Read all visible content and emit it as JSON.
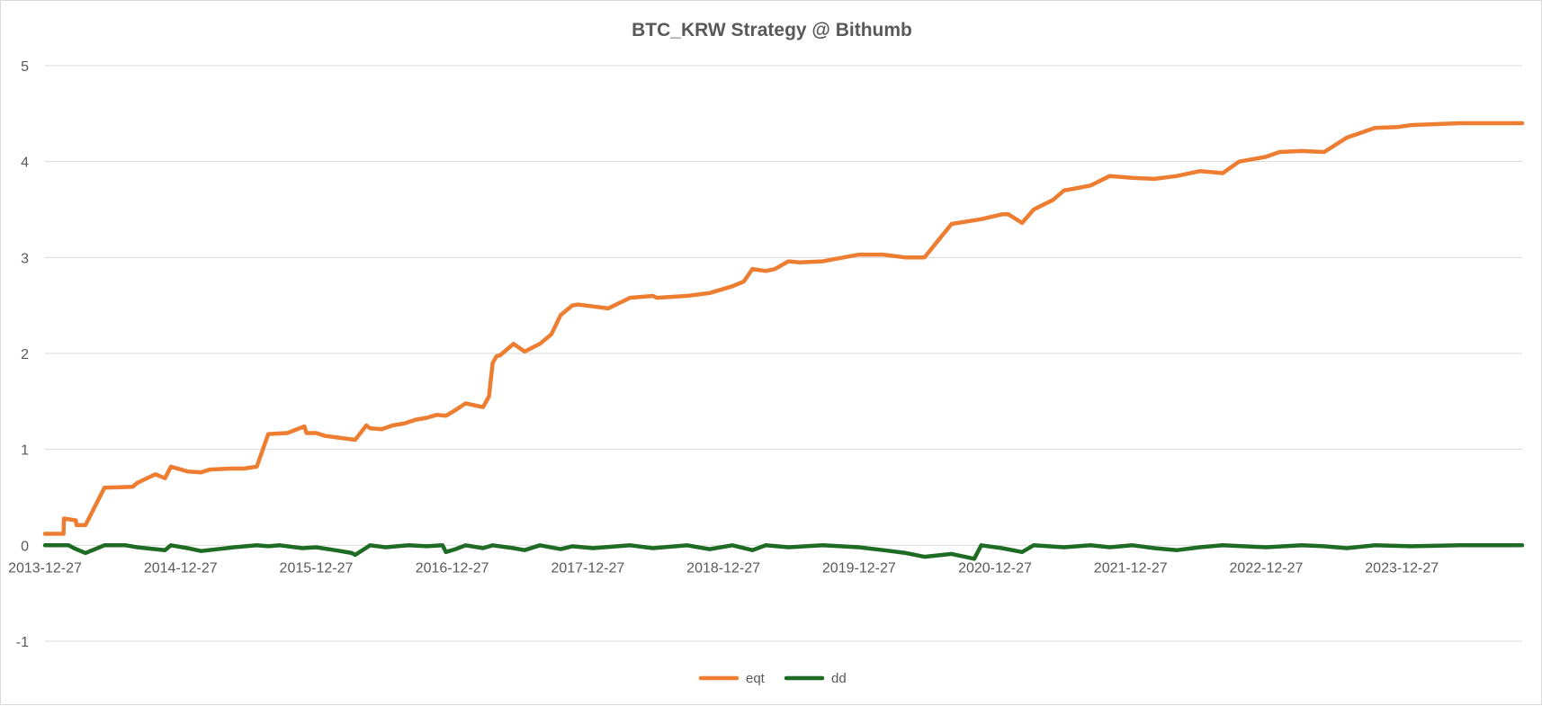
{
  "chart_data": {
    "type": "line",
    "title": "BTC_KRW Strategy @ Bithumb",
    "xlabel": "",
    "ylabel": "",
    "x_tick_labels": [
      "2013-12-27",
      "2014-12-27",
      "2015-12-27",
      "2016-12-27",
      "2017-12-27",
      "2018-12-27",
      "2019-12-27",
      "2020-12-27",
      "2021-12-27",
      "2022-12-27",
      "2023-12-27"
    ],
    "xlim": [
      "2013-12-27",
      "2024-11-15"
    ],
    "ylim": [
      -1,
      5
    ],
    "y_ticks": [
      -1,
      0,
      1,
      2,
      3,
      4,
      5
    ],
    "grid": true,
    "legend_position": "bottom",
    "series": [
      {
        "name": "eqt",
        "color": "#ed7d31",
        "x": [
          "2013-12-27",
          "2014-02-15",
          "2014-02-16",
          "2014-03-20",
          "2014-03-22",
          "2014-04-15",
          "2014-06-05",
          "2014-08-20",
          "2014-09-01",
          "2014-10-20",
          "2014-11-15",
          "2014-12-01",
          "2015-01-15",
          "2015-02-20",
          "2015-03-15",
          "2015-05-10",
          "2015-06-15",
          "2015-07-20",
          "2015-08-20",
          "2015-10-10",
          "2015-11-25",
          "2015-12-01",
          "2015-12-27",
          "2016-01-20",
          "2016-03-01",
          "2016-04-10",
          "2016-05-10",
          "2016-05-20",
          "2016-06-20",
          "2016-07-20",
          "2016-08-20",
          "2016-09-20",
          "2016-10-20",
          "2016-11-15",
          "2016-12-10",
          "2017-01-05",
          "2017-02-01",
          "2017-03-20",
          "2017-04-05",
          "2017-04-15",
          "2017-04-25",
          "2017-05-05",
          "2017-06-10",
          "2017-07-10",
          "2017-08-20",
          "2017-09-20",
          "2017-10-15",
          "2017-11-15",
          "2017-12-01",
          "2018-01-10",
          "2018-02-20",
          "2018-04-20",
          "2018-06-20",
          "2018-07-01",
          "2018-09-20",
          "2018-11-20",
          "2019-01-20",
          "2019-02-20",
          "2019-03-15",
          "2019-04-20",
          "2019-05-15",
          "2019-06-20",
          "2019-07-20",
          "2019-09-20",
          "2019-12-27",
          "2020-03-01",
          "2020-05-01",
          "2020-06-20",
          "2020-09-01",
          "2020-11-20",
          "2021-01-15",
          "2021-02-01",
          "2021-03-10",
          "2021-04-10",
          "2021-06-01",
          "2021-07-01",
          "2021-08-01",
          "2021-09-10",
          "2021-11-01",
          "2022-01-01",
          "2022-03-01",
          "2022-05-01",
          "2022-07-01",
          "2022-09-01",
          "2022-10-15",
          "2022-12-27",
          "2023-02-01",
          "2023-04-01",
          "2023-06-01",
          "2023-08-01",
          "2023-10-15",
          "2023-12-15",
          "2024-01-20",
          "2024-03-20",
          "2024-06-01",
          "2024-08-15",
          "2024-11-15"
        ],
        "values": [
          0.12,
          0.12,
          0.28,
          0.26,
          0.21,
          0.21,
          0.6,
          0.61,
          0.65,
          0.74,
          0.7,
          0.82,
          0.77,
          0.76,
          0.79,
          0.8,
          0.8,
          0.82,
          1.16,
          1.17,
          1.24,
          1.17,
          1.17,
          1.14,
          1.12,
          1.1,
          1.25,
          1.22,
          1.21,
          1.25,
          1.27,
          1.31,
          1.33,
          1.36,
          1.35,
          1.41,
          1.48,
          1.44,
          1.55,
          1.9,
          1.97,
          1.98,
          2.1,
          2.02,
          2.1,
          2.2,
          2.4,
          2.5,
          2.51,
          2.49,
          2.47,
          2.58,
          2.6,
          2.58,
          2.6,
          2.63,
          2.7,
          2.75,
          2.88,
          2.86,
          2.88,
          2.96,
          2.95,
          2.96,
          3.03,
          3.03,
          3.0,
          3.0,
          3.35,
          3.4,
          3.45,
          3.45,
          3.36,
          3.5,
          3.6,
          3.7,
          3.72,
          3.75,
          3.85,
          3.83,
          3.82,
          3.85,
          3.9,
          3.88,
          4.0,
          4.05,
          4.1,
          4.11,
          4.1,
          4.25,
          4.35,
          4.36,
          4.38,
          4.39,
          4.4,
          4.4,
          4.4
        ]
      },
      {
        "name": "dd",
        "color": "#1e6b24",
        "x": [
          "2013-12-27",
          "2014-03-01",
          "2014-03-15",
          "2014-04-15",
          "2014-06-05",
          "2014-08-01",
          "2014-09-01",
          "2014-11-15",
          "2014-12-01",
          "2015-01-15",
          "2015-02-20",
          "2015-05-20",
          "2015-07-20",
          "2015-08-20",
          "2015-09-20",
          "2015-11-20",
          "2015-12-27",
          "2016-03-01",
          "2016-04-01",
          "2016-04-10",
          "2016-05-20",
          "2016-07-01",
          "2016-09-01",
          "2016-10-20",
          "2016-12-01",
          "2016-12-10",
          "2017-01-05",
          "2017-02-01",
          "2017-03-20",
          "2017-04-15",
          "2017-06-10",
          "2017-07-10",
          "2017-08-20",
          "2017-10-15",
          "2017-11-15",
          "2018-01-10",
          "2018-04-20",
          "2018-06-20",
          "2018-09-20",
          "2018-11-20",
          "2019-01-20",
          "2019-03-15",
          "2019-04-20",
          "2019-06-20",
          "2019-09-20",
          "2019-12-27",
          "2020-03-01",
          "2020-05-01",
          "2020-06-20",
          "2020-09-01",
          "2020-11-01",
          "2020-11-20",
          "2021-01-15",
          "2021-03-10",
          "2021-04-10",
          "2021-07-01",
          "2021-09-10",
          "2021-11-01",
          "2022-01-01",
          "2022-03-01",
          "2022-05-01",
          "2022-07-01",
          "2022-09-01",
          "2022-12-27",
          "2023-04-01",
          "2023-06-01",
          "2023-08-01",
          "2023-10-15",
          "2024-01-20",
          "2024-06-01",
          "2024-11-15"
        ],
        "values": [
          0.0,
          0.0,
          -0.03,
          -0.08,
          0.0,
          0.0,
          -0.02,
          -0.05,
          0.0,
          -0.03,
          -0.06,
          -0.02,
          0.0,
          -0.01,
          0.0,
          -0.03,
          -0.02,
          -0.06,
          -0.08,
          -0.1,
          0.0,
          -0.02,
          0.0,
          -0.01,
          0.0,
          -0.07,
          -0.04,
          0.0,
          -0.03,
          0.0,
          -0.03,
          -0.05,
          0.0,
          -0.04,
          -0.01,
          -0.03,
          0.0,
          -0.03,
          0.0,
          -0.04,
          0.0,
          -0.05,
          0.0,
          -0.02,
          0.0,
          -0.02,
          -0.05,
          -0.08,
          -0.12,
          -0.09,
          -0.14,
          0.0,
          -0.03,
          -0.07,
          0.0,
          -0.02,
          0.0,
          -0.02,
          0.0,
          -0.03,
          -0.05,
          -0.02,
          0.0,
          -0.02,
          0.0,
          -0.01,
          -0.03,
          0.0,
          -0.01,
          0.0,
          0.0
        ]
      }
    ]
  }
}
